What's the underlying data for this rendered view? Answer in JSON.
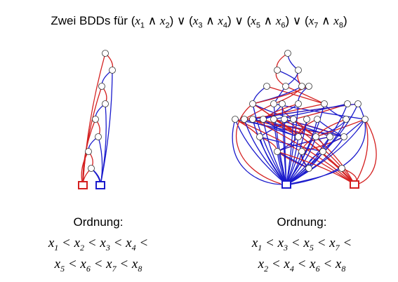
{
  "title": {
    "prefix": "Zwei BDDs für",
    "formula": "(x1 ∧ x2) ∨ (x3 ∧ x4) ∨ (x5 ∧ x6) ∨ (x7 ∧ x8)"
  },
  "bdd_left": {
    "ordering_label": "Ordnung:",
    "ordering_line1": "x1 < x2 < x3 < x4 <",
    "ordering_line2": "x5 < x6 < x7 < x8"
  },
  "bdd_right": {
    "ordering_label": "Ordnung:",
    "ordering_line1": "x1 < x3 < x5 < x7 <",
    "ordering_line2": "x2 < x4 < x6 < x8"
  },
  "colors": {
    "zero_edge": "#d42020",
    "one_edge": "#1a1acc",
    "node_stroke": "#333333"
  }
}
